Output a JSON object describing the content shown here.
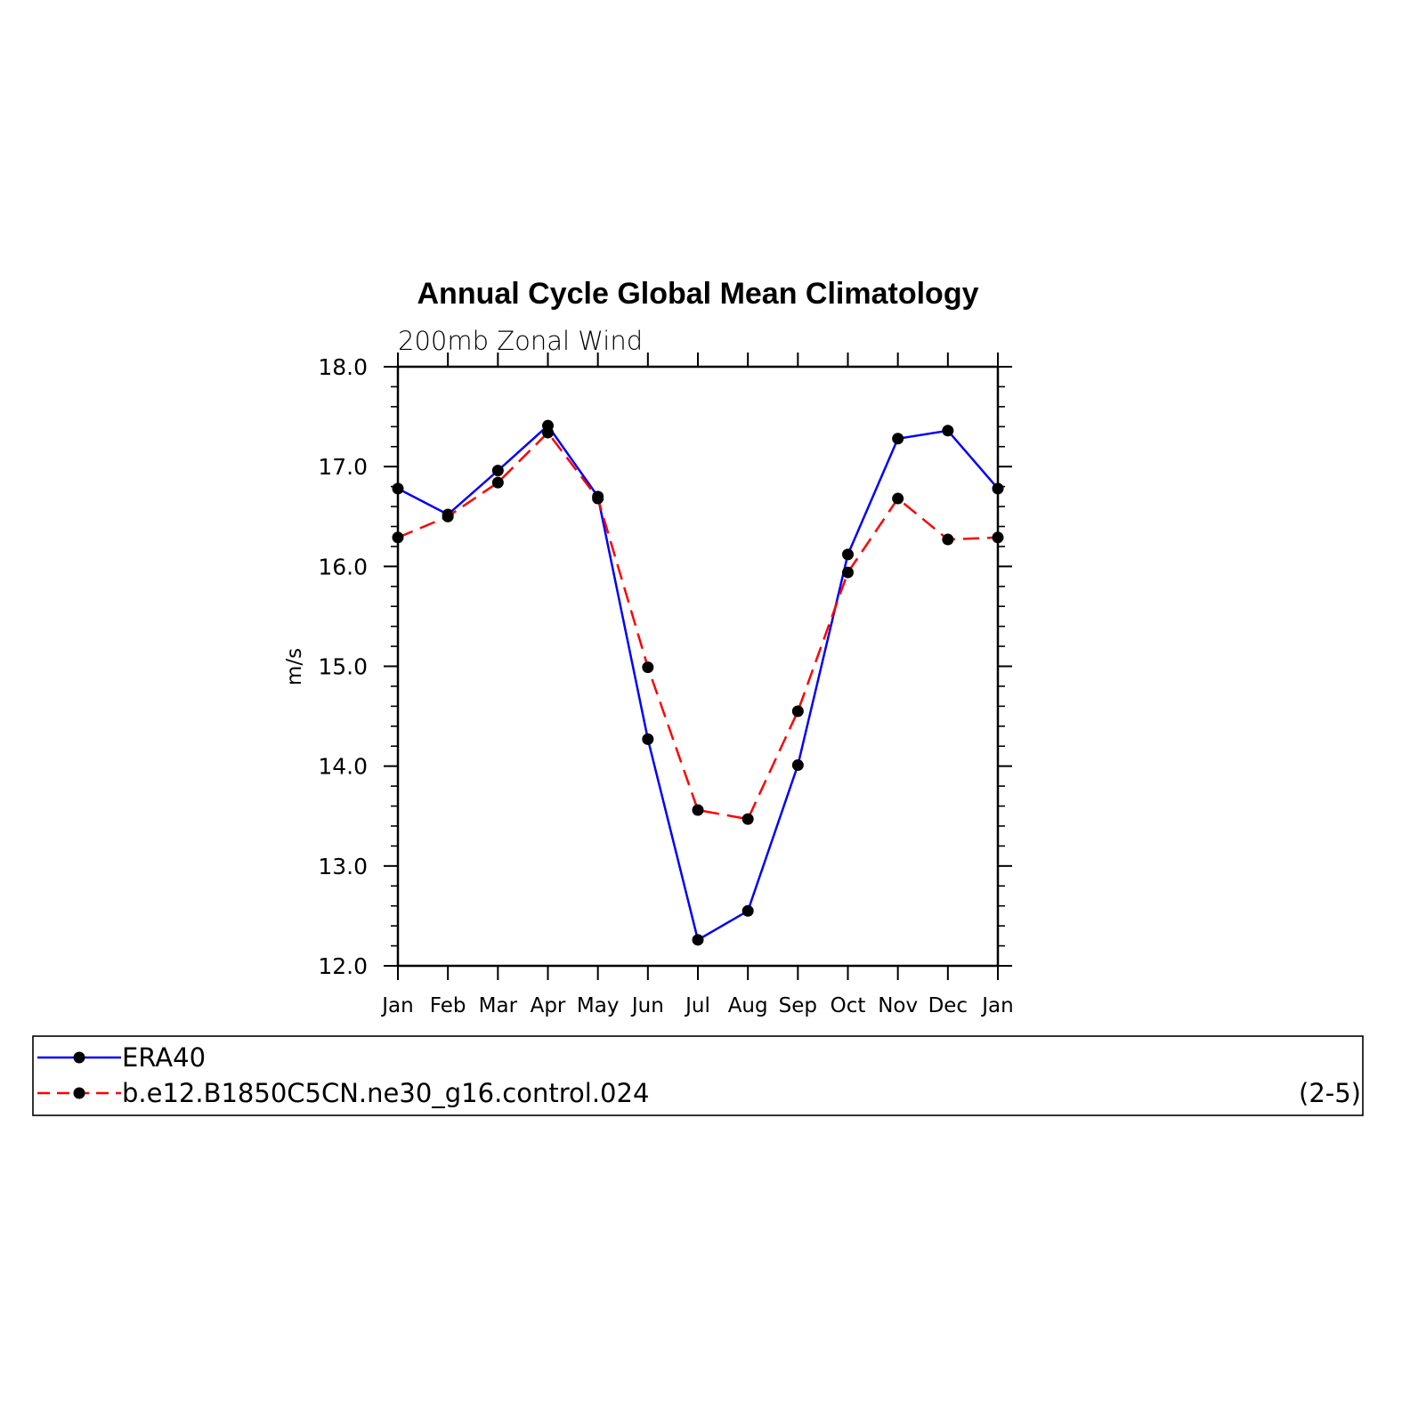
{
  "chart_data": {
    "type": "line",
    "title": "Annual Cycle Global Mean Climatology",
    "subtitle": "200mb Zonal Wind",
    "ylabel": "m/s",
    "xlabel": "",
    "ylim": [
      12.0,
      18.0
    ],
    "yticks": [
      "12.0",
      "13.0",
      "14.0",
      "15.0",
      "16.0",
      "17.0",
      "18.0"
    ],
    "categories": [
      "Jan",
      "Feb",
      "Mar",
      "Apr",
      "May",
      "Jun",
      "Jul",
      "Aug",
      "Sep",
      "Oct",
      "Nov",
      "Dec",
      "Jan"
    ],
    "grid": false,
    "legend_position": "bottom",
    "series": [
      {
        "name": "ERA40",
        "color": "#0000ff",
        "dash": "solid",
        "marker": "filled-circle",
        "values": [
          16.78,
          16.52,
          16.96,
          17.41,
          16.7,
          14.27,
          12.26,
          12.55,
          14.01,
          16.12,
          17.28,
          17.36,
          16.78
        ]
      },
      {
        "name": "b.e12.B1850C5CN.ne30_g16.control.024",
        "color": "#ff0000",
        "dash": "dashed",
        "marker": "filled-circle",
        "values": [
          16.29,
          16.5,
          16.84,
          17.34,
          16.68,
          14.99,
          13.56,
          13.47,
          14.55,
          15.94,
          16.68,
          16.27,
          16.29
        ]
      }
    ],
    "annotation": "(2-5)"
  }
}
